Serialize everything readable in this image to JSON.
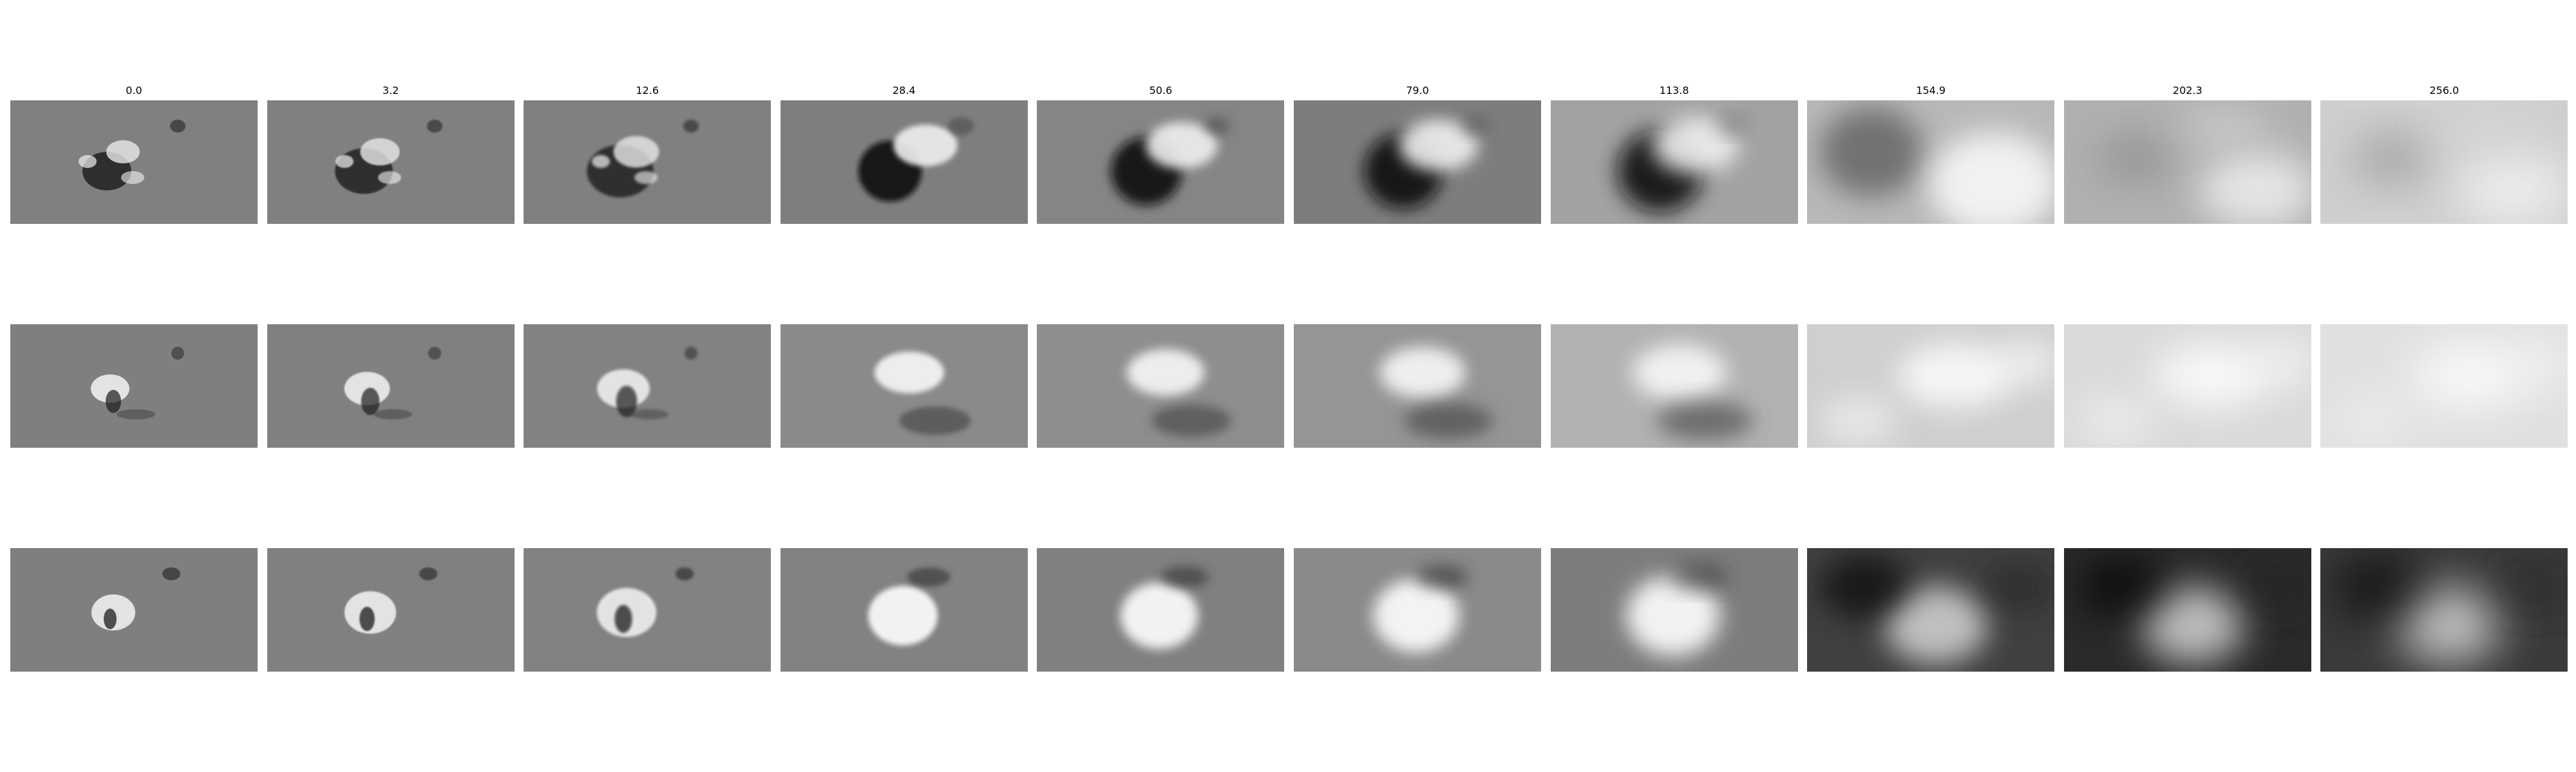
{
  "figure": {
    "column_titles": [
      "0.0",
      "3.2",
      "12.6",
      "28.4",
      "50.6",
      "79.0",
      "113.8",
      "154.9",
      "202.3",
      "256.0"
    ],
    "rows": [
      {
        "background_tones": [
          "#808080",
          "#808080",
          "#808080",
          "#7e7e7e",
          "#858585",
          "#7d7d7d",
          "#a2a2a2",
          "#b8b8b8",
          "#b0b0b0",
          "#cfcfcf"
        ]
      },
      {
        "background_tones": [
          "#7f7f7f",
          "#808080",
          "#828282",
          "#8a8a8a",
          "#8e8e8e",
          "#959595",
          "#b2b2b2",
          "#cfcfcf",
          "#dadada",
          "#e0e0e0"
        ]
      },
      {
        "background_tones": [
          "#7f7f7f",
          "#808080",
          "#828282",
          "#828282",
          "#808080",
          "#8a8a8a",
          "#7d7d7d",
          "#404040",
          "#2a2a2a",
          "#3a3a3a"
        ]
      }
    ]
  }
}
